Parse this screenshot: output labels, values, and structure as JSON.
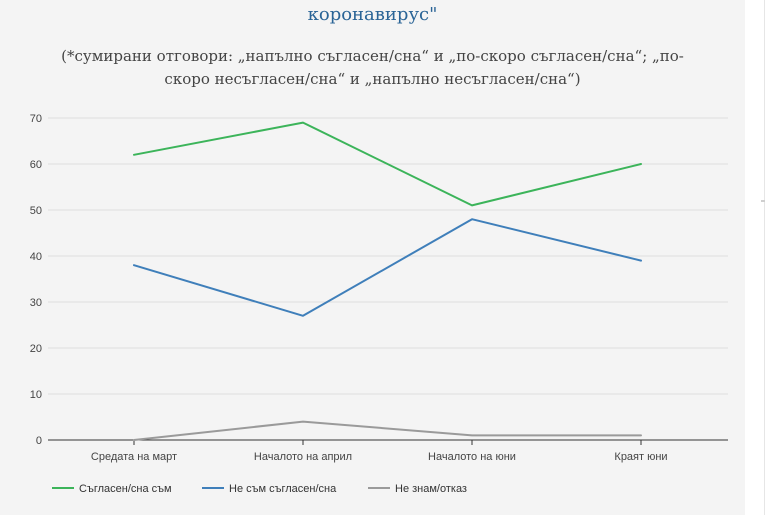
{
  "chart_data": {
    "type": "line",
    "title": "коронавирус\"",
    "subtitle": "(*сумирани отговори: „напълно съгласен/сна“ и „по-скоро съгласен/сна“; „по-скоро несъгласен/сна“ и „напълно несъгласен/сна“)",
    "categories": [
      "Средата на март",
      "Началото на април",
      "Началото на юни",
      "Краят юни"
    ],
    "ylim": [
      0,
      70
    ],
    "yticks": [
      0,
      10,
      20,
      30,
      40,
      50,
      60,
      70
    ],
    "grid": true,
    "legend_position": "bottom",
    "series": [
      {
        "name": "Съгласен/сна съм",
        "color": "#3cb45a",
        "values": [
          62,
          69,
          51,
          60
        ]
      },
      {
        "name": "Не съм съгласен/сна",
        "color": "#3f7fba",
        "values": [
          38,
          27,
          48,
          39
        ]
      },
      {
        "name": "Не знам/отказ",
        "color": "#9a9a9a",
        "values": [
          0,
          4,
          1,
          1
        ]
      }
    ]
  }
}
